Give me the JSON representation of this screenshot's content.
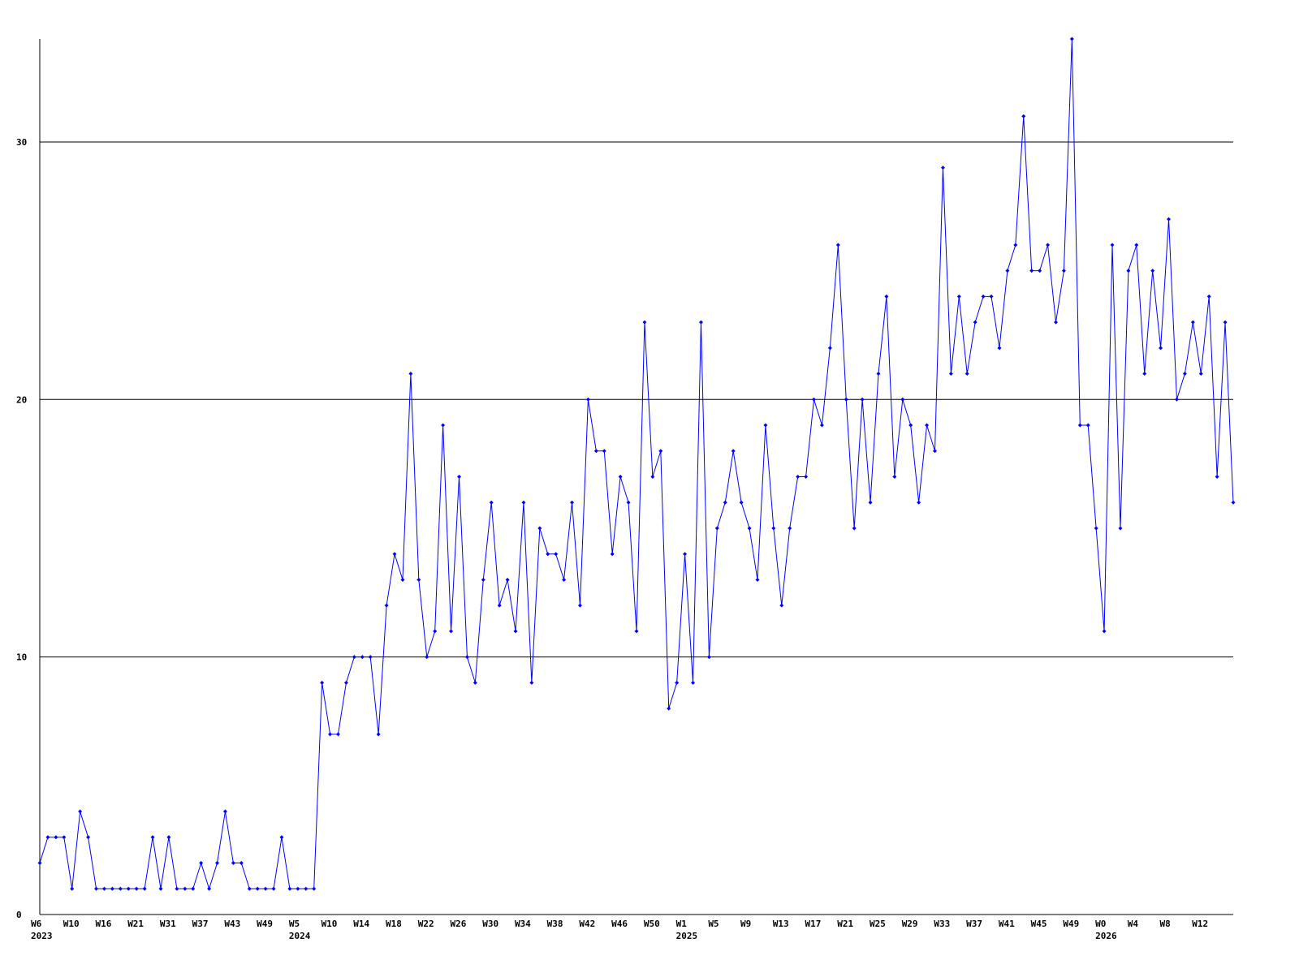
{
  "chart_data": {
    "type": "line",
    "categories": [
      "W6",
      null,
      null,
      null,
      "W10",
      null,
      null,
      null,
      "W16",
      null,
      null,
      null,
      "W21",
      null,
      null,
      null,
      "W31",
      null,
      null,
      null,
      "W37",
      null,
      null,
      null,
      "W43",
      null,
      null,
      null,
      "W49",
      null,
      null,
      null,
      "W5",
      null,
      null,
      null,
      "W10",
      null,
      null,
      null,
      "W14",
      null,
      null,
      null,
      "W18",
      null,
      null,
      null,
      "W22",
      null,
      null,
      null,
      "W26",
      null,
      null,
      null,
      "W30",
      null,
      null,
      null,
      "W34",
      null,
      null,
      null,
      "W38",
      null,
      null,
      null,
      "W42",
      null,
      null,
      null,
      "W46",
      null,
      null,
      null,
      "W50",
      null,
      null,
      null,
      "W1",
      null,
      null,
      null,
      "W5",
      null,
      null,
      null,
      "W9",
      null,
      null,
      null,
      "W13",
      null,
      null,
      null,
      "W17",
      null,
      null,
      null,
      "W21",
      null,
      null,
      null,
      "W25",
      null,
      null,
      null,
      "W29",
      null,
      null,
      null,
      "W33",
      null,
      null,
      null,
      "W37",
      null,
      null,
      null,
      "W41",
      null,
      null,
      null,
      "W45",
      null,
      null,
      null,
      "W49",
      null,
      null,
      null,
      "W0",
      null,
      null,
      null,
      "W4",
      null,
      null,
      null,
      "W8",
      null,
      null,
      null,
      "W12",
      null,
      null,
      null,
      null
    ],
    "x_year_labels": [
      "2023",
      null,
      null,
      null,
      null,
      null,
      null,
      null,
      null,
      null,
      null,
      null,
      null,
      null,
      null,
      null,
      null,
      null,
      null,
      null,
      null,
      null,
      null,
      null,
      null,
      null,
      null,
      null,
      null,
      null,
      null,
      null,
      "2024",
      null,
      null,
      null,
      null,
      null,
      null,
      null,
      null,
      null,
      null,
      null,
      null,
      null,
      null,
      null,
      null,
      null,
      null,
      null,
      null,
      null,
      null,
      null,
      null,
      null,
      null,
      null,
      null,
      null,
      null,
      null,
      null,
      null,
      null,
      null,
      null,
      null,
      null,
      null,
      null,
      null,
      null,
      null,
      null,
      null,
      null,
      null,
      "2025",
      null,
      null,
      null,
      null,
      null,
      null,
      null,
      null,
      null,
      null,
      null,
      null,
      null,
      null,
      null,
      null,
      null,
      null,
      null,
      null,
      null,
      null,
      null,
      null,
      null,
      null,
      null,
      null,
      null,
      null,
      null,
      null,
      null,
      null,
      null,
      null,
      null,
      null,
      null,
      null,
      null,
      null,
      null,
      null,
      null,
      null,
      null,
      null,
      null,
      null,
      null,
      "2026",
      null,
      null,
      null,
      null,
      null,
      null,
      null,
      null,
      null,
      null,
      null,
      null,
      null,
      null,
      null,
      null
    ],
    "series": [
      {
        "color": "#0000ff",
        "values": [
          2,
          3,
          3,
          3,
          1,
          4,
          3,
          1,
          1,
          1,
          1,
          1,
          1,
          1,
          3,
          1,
          3,
          1,
          1,
          1,
          2,
          1,
          2,
          4,
          2,
          2,
          1,
          1,
          1,
          1,
          3,
          1,
          1,
          1,
          1,
          9,
          7,
          7,
          9,
          10,
          10,
          10,
          7,
          12,
          14,
          13,
          21,
          13,
          10,
          11,
          19,
          11,
          17,
          10,
          9,
          13,
          16,
          12,
          13,
          11,
          16,
          9,
          15,
          14,
          14,
          13,
          16,
          12,
          20,
          18,
          18,
          14,
          17,
          16,
          11,
          23,
          17,
          18,
          8,
          9,
          14,
          9,
          23,
          10,
          15,
          16,
          18,
          16,
          15,
          13,
          19,
          15,
          12,
          15,
          17,
          17,
          20,
          19,
          22,
          26,
          20,
          15,
          20,
          16,
          21,
          24,
          17,
          20,
          19,
          16,
          19,
          18,
          29,
          21,
          24,
          21,
          23,
          24,
          24,
          22,
          25,
          26,
          31,
          25,
          25,
          26,
          23,
          25,
          34,
          19,
          19,
          15,
          11,
          26,
          15,
          25,
          26,
          21,
          25,
          22,
          27,
          20,
          21,
          23,
          21,
          24,
          17,
          23,
          16
        ]
      }
    ],
    "ylim": [
      0,
      34
    ],
    "yticks": [
      0,
      10,
      20,
      30
    ],
    "grid": true,
    "markers": true
  }
}
